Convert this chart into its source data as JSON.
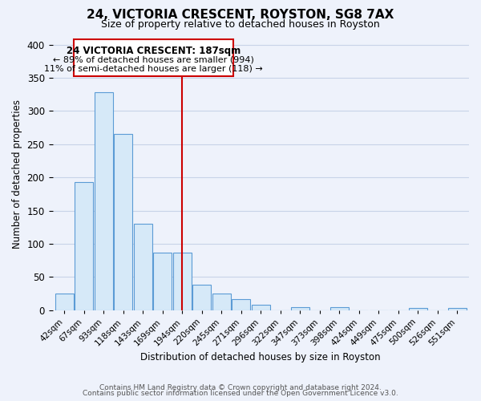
{
  "title": "24, VICTORIA CRESCENT, ROYSTON, SG8 7AX",
  "subtitle": "Size of property relative to detached houses in Royston",
  "xlabel": "Distribution of detached houses by size in Royston",
  "ylabel": "Number of detached properties",
  "bar_labels": [
    "42sqm",
    "67sqm",
    "93sqm",
    "118sqm",
    "143sqm",
    "169sqm",
    "194sqm",
    "220sqm",
    "245sqm",
    "271sqm",
    "296sqm",
    "322sqm",
    "347sqm",
    "373sqm",
    "398sqm",
    "424sqm",
    "449sqm",
    "475sqm",
    "500sqm",
    "526sqm",
    "551sqm"
  ],
  "bar_heights": [
    25,
    193,
    328,
    266,
    130,
    87,
    87,
    38,
    25,
    17,
    8,
    0,
    5,
    0,
    5,
    0,
    0,
    0,
    3,
    0,
    3
  ],
  "bar_color": "#d6e9f8",
  "bar_edge_color": "#5b9bd5",
  "vline_index": 6,
  "vline_color": "#cc0000",
  "annotation_title": "24 VICTORIA CRESCENT: 187sqm",
  "annotation_line1": "← 89% of detached houses are smaller (994)",
  "annotation_line2": "11% of semi-detached houses are larger (118) →",
  "annotation_box_color": "#ffffff",
  "annotation_box_edge": "#cc0000",
  "ylim": [
    0,
    410
  ],
  "yticks": [
    0,
    50,
    100,
    150,
    200,
    250,
    300,
    350,
    400
  ],
  "footer1": "Contains HM Land Registry data © Crown copyright and database right 2024.",
  "footer2": "Contains public sector information licensed under the Open Government Licence v3.0.",
  "background_color": "#eef2fb",
  "plot_background": "#eef2fb",
  "grid_color": "#c8d3e8"
}
